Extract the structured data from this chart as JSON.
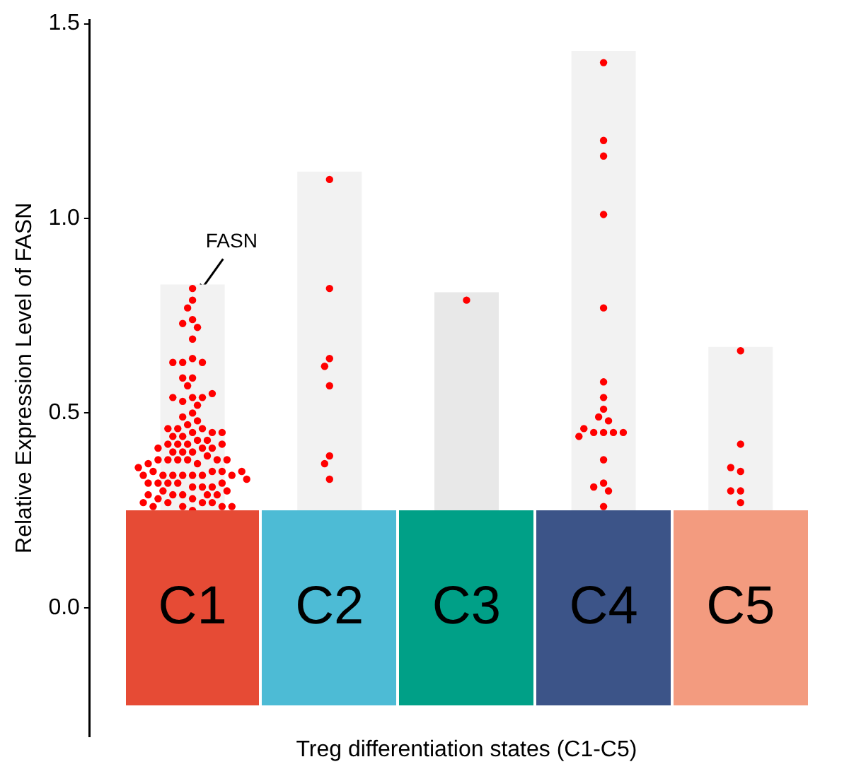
{
  "chart_data": {
    "type": "bar",
    "xlabel": "Treg differentiation states (C1-C5)",
    "ylabel": "Relative Expression Level of FASN",
    "categories": [
      "C1",
      "C2",
      "C3",
      "C4",
      "C5"
    ],
    "series": [
      {
        "colors": [
          "#f2f2f2",
          "#f2f2f2",
          "#e8e8e8",
          "#f2f2f2",
          "#f2f2f2"
        ],
        "base": [
          0.25,
          0.25,
          0.25,
          0.25,
          0.25
        ],
        "values": [
          0.58,
          0.87,
          0.56,
          1.18,
          0.42
        ]
      },
      {
        "type": "scatter",
        "color": "#ff0000",
        "x": [
          "C1",
          "C1",
          "C1",
          "C1",
          "C1",
          "C1",
          "C1",
          "C1",
          "C1",
          "C1",
          "C1",
          "C1",
          "C1",
          "C1",
          "C1",
          "C1",
          "C1",
          "C1",
          "C1",
          "C1",
          "C1",
          "C1",
          "C1",
          "C1",
          "C1",
          "C1",
          "C1",
          "C1",
          "C1",
          "C1",
          "C1",
          "C1",
          "C1",
          "C1",
          "C1",
          "C1",
          "C1",
          "C1",
          "C1",
          "C1",
          "C1",
          "C1",
          "C1",
          "C1",
          "C1",
          "C1",
          "C1",
          "C1",
          "C1",
          "C1",
          "C1",
          "C1",
          "C1",
          "C1",
          "C1",
          "C1",
          "C1",
          "C1",
          "C1",
          "C1",
          "C1",
          "C1",
          "C1",
          "C1",
          "C1",
          "C1",
          "C1",
          "C1",
          "C1",
          "C1",
          "C1",
          "C1",
          "C1",
          "C1",
          "C1",
          "C1",
          "C1",
          "C1",
          "C1",
          "C1",
          "C1",
          "C1",
          "C1",
          "C1",
          "C1",
          "C1",
          "C1",
          "C1",
          "C1",
          "C1",
          "C1",
          "C1",
          "C2",
          "C2",
          "C2",
          "C2",
          "C2",
          "C2",
          "C2",
          "C2",
          "C3",
          "C4",
          "C4",
          "C4",
          "C4",
          "C4",
          "C4",
          "C4",
          "C4",
          "C4",
          "C4",
          "C4",
          "C4",
          "C4",
          "C4",
          "C4",
          "C4",
          "C4",
          "C4",
          "C4",
          "C4",
          "C4",
          "C5",
          "C5",
          "C5",
          "C5",
          "C5",
          "C5",
          "C5"
        ],
        "values": [
          0.82,
          0.79,
          0.77,
          0.74,
          0.73,
          0.72,
          0.69,
          0.64,
          0.63,
          0.63,
          0.63,
          0.59,
          0.59,
          0.57,
          0.54,
          0.53,
          0.54,
          0.54,
          0.55,
          0.52,
          0.5,
          0.49,
          0.48,
          0.47,
          0.46,
          0.46,
          0.45,
          0.44,
          0.45,
          0.46,
          0.43,
          0.42,
          0.45,
          0.44,
          0.42,
          0.43,
          0.41,
          0.42,
          0.41,
          0.42,
          0.41,
          0.4,
          0.4,
          0.4,
          0.39,
          0.38,
          0.37,
          0.38,
          0.38,
          0.38,
          0.38,
          0.38,
          0.37,
          0.34,
          0.34,
          0.34,
          0.34,
          0.35,
          0.34,
          0.35,
          0.35,
          0.34,
          0.34,
          0.35,
          0.36,
          0.31,
          0.32,
          0.31,
          0.31,
          0.32,
          0.32,
          0.32,
          0.32,
          0.33,
          0.28,
          0.29,
          0.29,
          0.29,
          0.3,
          0.3,
          0.29,
          0.28,
          0.29,
          0.25,
          0.27,
          0.26,
          0.27,
          0.27,
          0.26,
          0.26,
          0.26,
          0.27,
          1.1,
          0.82,
          0.64,
          0.62,
          0.57,
          0.39,
          0.37,
          0.33,
          0.79,
          1.4,
          1.2,
          1.16,
          1.01,
          0.77,
          0.58,
          0.54,
          0.51,
          0.49,
          0.48,
          0.45,
          0.45,
          0.45,
          0.46,
          0.45,
          0.44,
          0.38,
          0.32,
          0.31,
          0.3,
          0.26,
          0.66,
          0.42,
          0.35,
          0.36,
          0.3,
          0.3,
          0.27
        ]
      }
    ],
    "ylim": [
      -0.33,
      1.51
    ],
    "yticks": [
      {
        "value": 0,
        "label": "0.0"
      },
      0.5,
      {
        "value": 1,
        "label": "1.0"
      },
      1.5
    ],
    "annotations": [
      {
        "text": "FASN",
        "x": "C1",
        "y": 0.79
      }
    ],
    "marker": "circle",
    "legend": false,
    "grid": false
  }
}
